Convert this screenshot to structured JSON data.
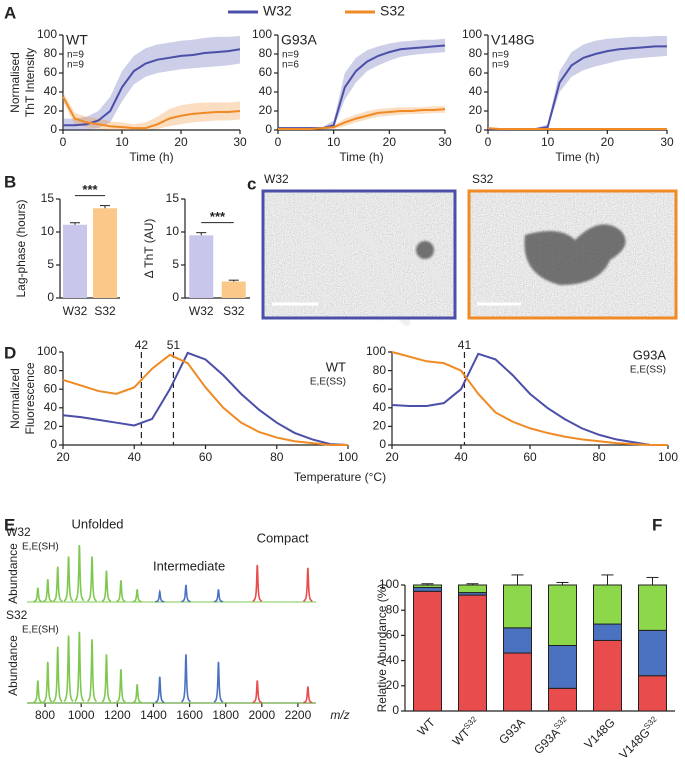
{
  "chart_data": [
    {
      "type": "line",
      "panel": "A",
      "label": "WT",
      "ylabel": [
        "Normalised",
        "ThT Intensity"
      ],
      "xlabel": "Time (h)",
      "annotations": [
        {
          "text": "n=9",
          "color": "#4b4fa8"
        },
        {
          "text": "n=9",
          "color": "#f08a24"
        }
      ],
      "xlim": [
        0,
        30
      ],
      "xticks": [
        0,
        10,
        20,
        30
      ],
      "ylim": [
        0,
        100
      ],
      "yticks": [
        0,
        20,
        40,
        60,
        80,
        100
      ],
      "x": [
        0,
        2,
        4,
        6,
        8,
        10,
        12,
        14,
        16,
        18,
        20,
        22,
        24,
        26,
        28,
        30
      ],
      "series": [
        {
          "name": "W32",
          "color": "#4b4fa8",
          "values": [
            5,
            5,
            6,
            10,
            20,
            45,
            62,
            70,
            74,
            76,
            78,
            79,
            81,
            82,
            83,
            85
          ],
          "upper": [
            12,
            12,
            14,
            20,
            35,
            62,
            78,
            86,
            90,
            92,
            94,
            95,
            97,
            98,
            98,
            99
          ],
          "lower": [
            0,
            0,
            0,
            2,
            8,
            30,
            48,
            56,
            60,
            62,
            64,
            65,
            66,
            67,
            68,
            70
          ]
        },
        {
          "name": "S32",
          "color": "#f08a24",
          "values": [
            35,
            12,
            8,
            6,
            4,
            3,
            2,
            2,
            6,
            12,
            15,
            17,
            18,
            19,
            19,
            20
          ],
          "upper": [
            40,
            18,
            14,
            12,
            9,
            8,
            6,
            8,
            14,
            22,
            26,
            28,
            29,
            29,
            29,
            30
          ],
          "lower": [
            30,
            6,
            3,
            1,
            0,
            0,
            0,
            0,
            1,
            4,
            6,
            8,
            9,
            10,
            10,
            11
          ]
        }
      ]
    },
    {
      "type": "line",
      "label": "G93A",
      "xlabel": "Time (h)",
      "annotations": [
        {
          "text": "n=9",
          "color": "#4b4fa8"
        },
        {
          "text": "n=6",
          "color": "#f08a24"
        }
      ],
      "xlim": [
        0,
        30
      ],
      "xticks": [
        0,
        10,
        20,
        30
      ],
      "ylim": [
        0,
        100
      ],
      "yticks": [
        0,
        20,
        40,
        60,
        80,
        100
      ],
      "x": [
        0,
        2,
        4,
        6,
        8,
        10,
        12,
        14,
        16,
        18,
        20,
        22,
        24,
        26,
        28,
        30
      ],
      "series": [
        {
          "color": "#4b4fa8",
          "values": [
            2,
            2,
            2,
            2,
            2,
            5,
            45,
            62,
            72,
            78,
            82,
            85,
            86,
            87,
            88,
            89
          ],
          "upper": [
            3,
            3,
            3,
            3,
            3,
            10,
            60,
            76,
            84,
            88,
            91,
            93,
            94,
            95,
            95,
            96
          ],
          "lower": [
            1,
            1,
            1,
            1,
            1,
            2,
            32,
            50,
            62,
            68,
            73,
            77,
            79,
            80,
            81,
            82
          ]
        },
        {
          "color": "#f08a24",
          "values": [
            1,
            1,
            1,
            1,
            2,
            3,
            8,
            12,
            15,
            18,
            19,
            20,
            20,
            21,
            21,
            22
          ],
          "upper": [
            2,
            2,
            2,
            2,
            3,
            5,
            12,
            16,
            20,
            22,
            23,
            24,
            24,
            24,
            25,
            25
          ],
          "lower": [
            0,
            0,
            0,
            0,
            1,
            1,
            4,
            8,
            11,
            14,
            15,
            16,
            17,
            17,
            18,
            18
          ]
        }
      ]
    },
    {
      "type": "line",
      "label": "V148G",
      "xlabel": "Time (h)",
      "annotations": [
        {
          "text": "n=9",
          "color": "#4b4fa8"
        },
        {
          "text": "n=9",
          "color": "#f08a24"
        }
      ],
      "xlim": [
        0,
        30
      ],
      "xticks": [
        0,
        10,
        20,
        30
      ],
      "ylim": [
        0,
        100
      ],
      "yticks": [
        0,
        20,
        40,
        60,
        80,
        100
      ],
      "x": [
        0,
        2,
        4,
        6,
        8,
        10,
        12,
        14,
        16,
        18,
        20,
        22,
        24,
        26,
        28,
        30
      ],
      "series": [
        {
          "color": "#4b4fa8",
          "values": [
            1,
            1,
            1,
            1,
            1,
            3,
            50,
            68,
            76,
            80,
            83,
            85,
            86,
            87,
            88,
            88
          ],
          "upper": [
            2,
            2,
            2,
            2,
            2,
            6,
            62,
            82,
            90,
            94,
            96,
            97,
            98,
            98,
            99,
            99
          ],
          "lower": [
            0,
            0,
            0,
            0,
            0,
            1,
            40,
            56,
            63,
            67,
            70,
            73,
            75,
            76,
            77,
            78
          ]
        },
        {
          "color": "#f08a24",
          "values": [
            2,
            1,
            1,
            1,
            1,
            1,
            1,
            1,
            1,
            1,
            1,
            1,
            1,
            1,
            1,
            1
          ]
        }
      ]
    },
    {
      "type": "bar",
      "panel": "B",
      "ylabel": "Lag-phase (hours)",
      "categories": [
        "W32",
        "S32"
      ],
      "values": [
        11.1,
        13.6
      ],
      "errors": [
        0.3,
        0.4
      ],
      "colors": [
        "#c9c6ec",
        "#fcc88a"
      ],
      "significance": "***",
      "ylim": [
        0,
        15
      ],
      "yticks": [
        0,
        5,
        10,
        15
      ]
    },
    {
      "type": "bar",
      "ylabel": "Δ ThT (AU)",
      "categories": [
        "W32",
        "S32"
      ],
      "values": [
        9.5,
        2.5
      ],
      "errors": [
        0.4,
        0.2
      ],
      "colors": [
        "#c9c6ec",
        "#fcc88a"
      ],
      "significance": "***",
      "ylim": [
        0,
        15
      ],
      "yticks": [
        0,
        5,
        10,
        15
      ]
    },
    {
      "type": "line",
      "panel": "D",
      "label": "WT",
      "sublabel": "E,E(SS)",
      "ylabel": [
        "Normalized",
        "Fluorescence"
      ],
      "xlabel": "Temperature (°C)",
      "markers": [
        {
          "value": 42,
          "color": "#f08a24"
        },
        {
          "value": 51,
          "color": "#4b4fa8"
        }
      ],
      "xlim": [
        20,
        100
      ],
      "xticks": [
        20,
        40,
        60,
        80,
        100
      ],
      "ylim": [
        0,
        100
      ],
      "yticks": [
        0,
        20,
        40,
        60,
        80,
        100
      ],
      "x": [
        20,
        25,
        30,
        35,
        40,
        45,
        50,
        55,
        60,
        65,
        70,
        75,
        80,
        85,
        90,
        95,
        100
      ],
      "series": [
        {
          "color": "#4b4fa8",
          "values": [
            32,
            30,
            27,
            24,
            21,
            28,
            60,
            99,
            92,
            75,
            55,
            38,
            24,
            13,
            6,
            1,
            0
          ]
        },
        {
          "color": "#f08a24",
          "values": [
            70,
            64,
            58,
            55,
            62,
            82,
            97,
            88,
            62,
            40,
            24,
            14,
            8,
            4,
            2,
            0,
            0
          ]
        }
      ]
    },
    {
      "type": "line",
      "label": "G93A",
      "sublabel": "E,E(SS)",
      "markers": [
        {
          "value": 41,
          "color": "#4b4fa8"
        }
      ],
      "xlim": [
        20,
        100
      ],
      "xticks": [
        20,
        40,
        60,
        80,
        100
      ],
      "ylim": [
        0,
        100
      ],
      "yticks": [
        0,
        20,
        40,
        60,
        80,
        100
      ],
      "x": [
        20,
        25,
        30,
        35,
        40,
        45,
        50,
        55,
        60,
        65,
        70,
        75,
        80,
        85,
        90,
        95,
        100
      ],
      "series": [
        {
          "color": "#4b4fa8",
          "values": [
            43,
            42,
            42,
            45,
            60,
            98,
            92,
            75,
            55,
            40,
            28,
            18,
            11,
            6,
            3,
            0,
            0
          ]
        },
        {
          "color": "#f08a24",
          "values": [
            100,
            95,
            90,
            88,
            80,
            55,
            35,
            25,
            18,
            13,
            9,
            6,
            4,
            2,
            1,
            0,
            0
          ]
        }
      ]
    },
    {
      "type": "spectrum",
      "panel": "E",
      "label": "W32",
      "sublabel": "E,E(SH)",
      "ylabel": "Abundance",
      "xlim": [
        700,
        2300
      ],
      "ylim": [
        0,
        100
      ],
      "series": [
        {
          "name": "Unfolded",
          "color": "#7ec850",
          "x": [
            760,
            815,
            870,
            930,
            990,
            1060,
            1140,
            1220,
            1310
          ],
          "values": [
            25,
            40,
            62,
            80,
            100,
            80,
            55,
            38,
            22
          ]
        },
        {
          "name": "Intermediate",
          "color": "#4a72c0",
          "x": [
            1435,
            1580,
            1760
          ],
          "values": [
            18,
            30,
            22
          ]
        },
        {
          "name": "Compact",
          "color": "#e84c4c",
          "x": [
            1975,
            2255
          ],
          "values": [
            65,
            60
          ]
        }
      ]
    },
    {
      "type": "spectrum",
      "label": "S32",
      "sublabel": "E,E(SH)",
      "ylabel": "Abundance",
      "xlabel": "m/z",
      "xlim": [
        700,
        2300
      ],
      "ylim": [
        0,
        100
      ],
      "xticks": [
        800,
        1000,
        1200,
        1400,
        1600,
        1800,
        2000,
        2200
      ],
      "series": [
        {
          "color": "#7ec850",
          "x": [
            760,
            815,
            870,
            930,
            990,
            1060,
            1140,
            1220,
            1310
          ],
          "values": [
            30,
            55,
            75,
            90,
            95,
            85,
            65,
            45,
            25
          ]
        },
        {
          "color": "#4a72c0",
          "x": [
            1435,
            1580,
            1760
          ],
          "values": [
            35,
            65,
            55
          ]
        },
        {
          "color": "#e84c4c",
          "x": [
            1975,
            2255
          ],
          "values": [
            30,
            22
          ]
        }
      ]
    },
    {
      "type": "stacked_bar",
      "panel": "F",
      "ylabel": "Relative Abundance (%)",
      "categories": [
        "WT",
        "WT",
        "G93A",
        "G93A",
        "V148G",
        "V148G"
      ],
      "category_superscripts": [
        null,
        "S32",
        null,
        "S32",
        null,
        "S32"
      ],
      "ylim": [
        0,
        100
      ],
      "yticks": [
        0,
        20,
        40,
        60,
        80,
        100
      ],
      "series": [
        {
          "color": "#e84c4c",
          "values": [
            95,
            92,
            46,
            18,
            56,
            28
          ],
          "errors": [
            1,
            1,
            6,
            3,
            5,
            7
          ]
        },
        {
          "color": "#4a72c0",
          "values": [
            3,
            2,
            20,
            34,
            13,
            36
          ],
          "errors": [
            1,
            1,
            2,
            3,
            4,
            11
          ]
        },
        {
          "color": "#8dd84a",
          "values": [
            2,
            6,
            34,
            48,
            31,
            36
          ],
          "errors": [
            1,
            1,
            8,
            2,
            8,
            6
          ]
        }
      ]
    }
  ],
  "micrographs": {
    "panel": "c",
    "images": [
      {
        "label": "W32"
      },
      {
        "label": "S32"
      }
    ]
  }
}
